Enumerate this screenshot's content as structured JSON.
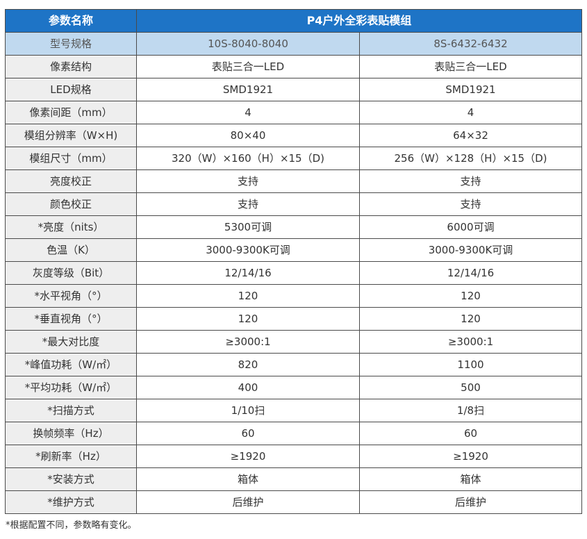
{
  "table": {
    "header": {
      "param_label": "参数名称",
      "product_title": "P4户外全彩表贴模组"
    },
    "rows": [
      {
        "param": "型号规格",
        "a": "10S-8040-8040",
        "b": "8S-6432-6432",
        "highlight": true
      },
      {
        "param": "像素结构",
        "a": "表贴三合一LED",
        "b": "表贴三合一LED"
      },
      {
        "param": "LED规格",
        "a": "SMD1921",
        "b": "SMD1921"
      },
      {
        "param": "像素间距（mm）",
        "a": "4",
        "b": "4"
      },
      {
        "param": "模组分辨率（W×H)",
        "a": "80×40",
        "b": "64×32"
      },
      {
        "param": "模组尺寸（mm）",
        "a": "320（W）×160（H）×15（D)",
        "b": "256（W）×128（H）×15（D)"
      },
      {
        "param": "亮度校正",
        "a": "支持",
        "b": "支持"
      },
      {
        "param": "颜色校正",
        "a": "支持",
        "b": "支持"
      },
      {
        "param": "*亮度（nits）",
        "a": "5300可调",
        "b": "6000可调"
      },
      {
        "param": "色温（K）",
        "a": "3000-9300K可调",
        "b": "3000-9300K可调"
      },
      {
        "param": "灰度等级（Bit）",
        "a": "12/14/16",
        "b": "12/14/16"
      },
      {
        "param": "*水平视角（°）",
        "a": "120",
        "b": "120"
      },
      {
        "param": "*垂直视角（°）",
        "a": "120",
        "b": "120"
      },
      {
        "param": "*最大对比度",
        "a": "≥3000:1",
        "b": "≥3000:1"
      },
      {
        "param": "*峰值功耗（W/㎡）",
        "a": "820",
        "b": "1100"
      },
      {
        "param": "*平均功耗（W/㎡）",
        "a": "400",
        "b": "500"
      },
      {
        "param": "*扫描方式",
        "a": "1/10扫",
        "b": "1/8扫"
      },
      {
        "param": "换帧频率（Hz）",
        "a": "60",
        "b": "60"
      },
      {
        "param": "*刷新率（Hz）",
        "a": "≥1920",
        "b": "≥1920"
      },
      {
        "param": "*安装方式",
        "a": "箱体",
        "b": "箱体"
      },
      {
        "param": "*维护方式",
        "a": "后维护",
        "b": "后维护"
      }
    ]
  },
  "footnote": "*根据配置不同，参数略有变化。",
  "colors": {
    "header_bg": "#1e74c6",
    "highlight_row_bg": "#c0d9ef",
    "param_cell_bg": "#eeeeee"
  }
}
